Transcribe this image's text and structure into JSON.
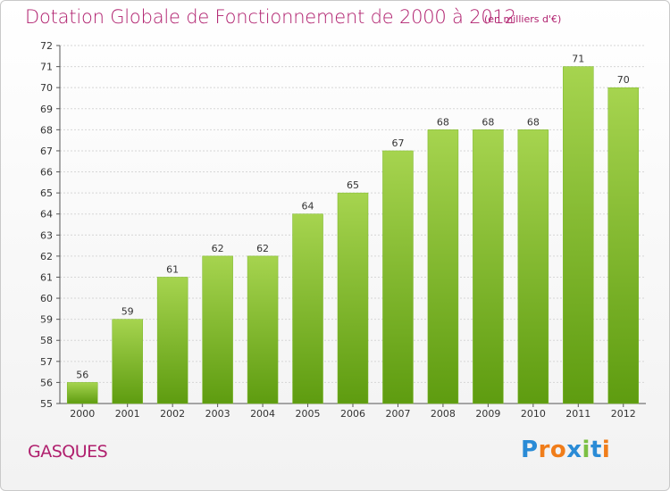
{
  "header": {
    "title": "Dotation Globale de Fonctionnement de 2000 à 2012",
    "unit_note": "(en milliers d'€)"
  },
  "footer": {
    "commune": "GASQUES",
    "brand": "Proxiti"
  },
  "colors": {
    "title": "#b0206e",
    "bar_top": "#a6d44f",
    "bar_bottom": "#5e9c10",
    "logo_letters": [
      "#2a8bd6",
      "#f07d1a",
      "#f07d1a",
      "#2a8bd6",
      "#7cc043",
      "#2a8bd6",
      "#f07d1a"
    ]
  },
  "chart_data": {
    "type": "bar",
    "title": "Dotation Globale de Fonctionnement de 2000 à 2012",
    "xlabel": "",
    "ylabel": "",
    "categories": [
      "2000",
      "2001",
      "2002",
      "2003",
      "2004",
      "2005",
      "2006",
      "2007",
      "2008",
      "2009",
      "2010",
      "2011",
      "2012"
    ],
    "values": [
      56,
      59,
      61,
      62,
      62,
      64,
      65,
      67,
      68,
      68,
      68,
      71,
      70
    ],
    "ylim": [
      55,
      72
    ],
    "yticks": [
      55,
      56,
      57,
      58,
      59,
      60,
      61,
      62,
      63,
      64,
      65,
      66,
      67,
      68,
      69,
      70,
      71,
      72
    ],
    "grid": true,
    "legend": "none"
  }
}
